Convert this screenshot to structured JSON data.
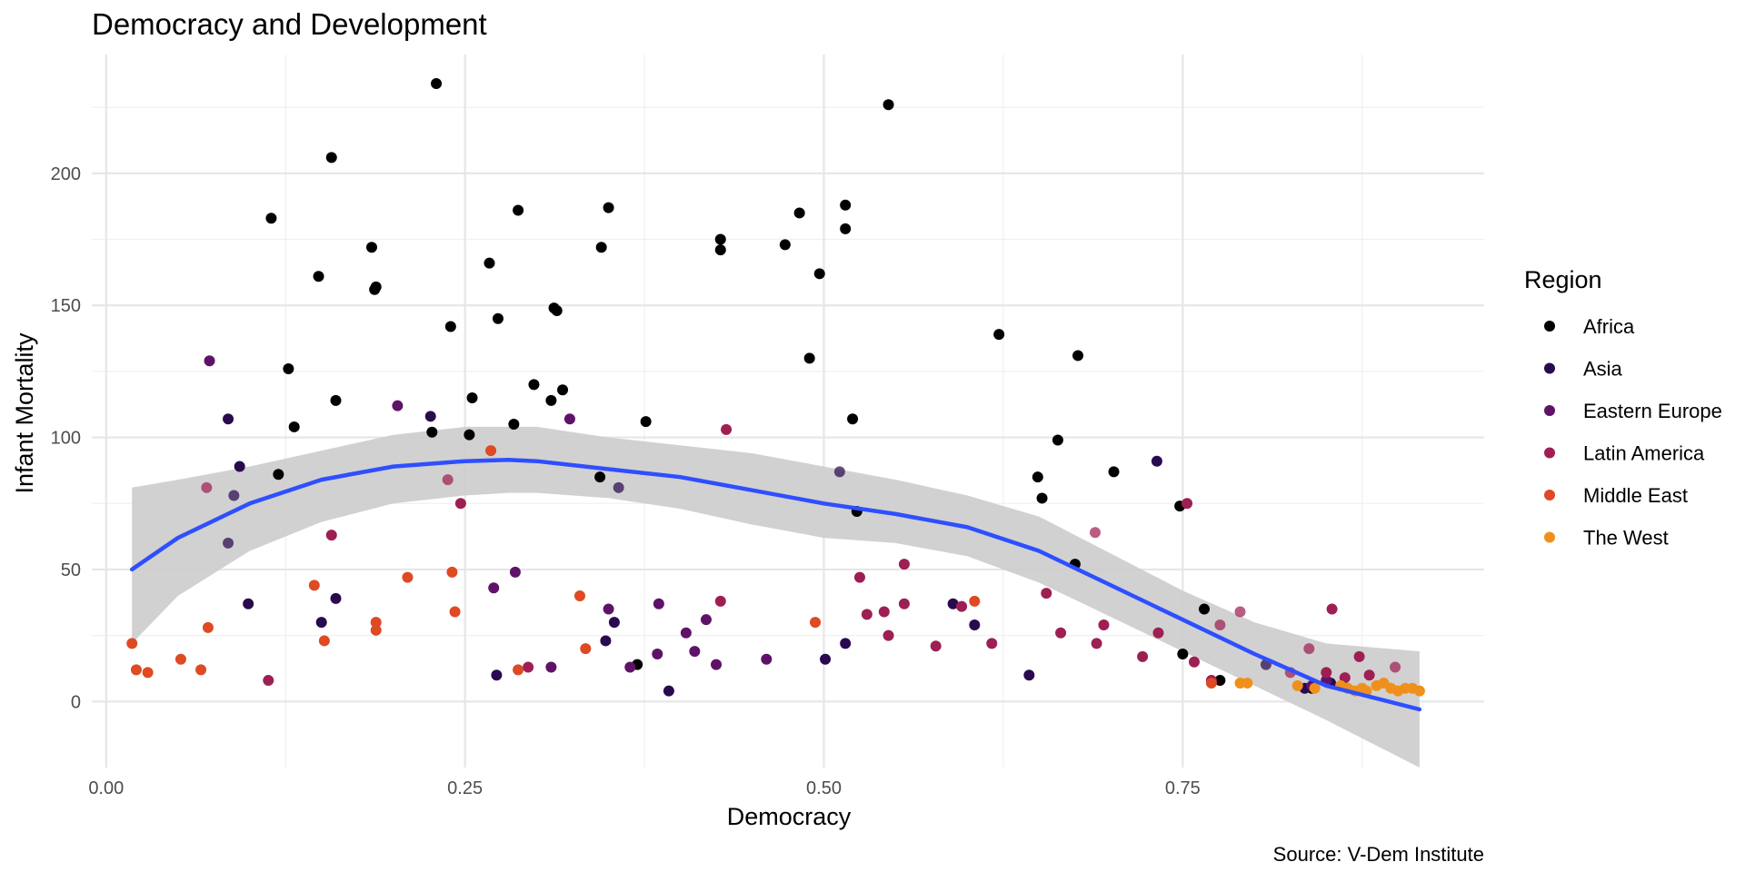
{
  "chart_data": {
    "type": "scatter",
    "title": "Democracy and Development",
    "xlabel": "Democracy",
    "ylabel": "Infant Mortality",
    "caption": "Source: V-Dem Institute",
    "xlim": [
      -0.01,
      0.96
    ],
    "ylim": [
      -25,
      245
    ],
    "x_ticks": [
      0.0,
      0.25,
      0.5,
      0.75
    ],
    "x_tick_labels": [
      "0.00",
      "0.25",
      "0.50",
      "0.75"
    ],
    "y_ticks": [
      0,
      50,
      100,
      150,
      200
    ],
    "y_tick_labels": [
      "0",
      "50",
      "100",
      "150",
      "200"
    ],
    "grid": true,
    "legend": {
      "title": "Region",
      "position": "right"
    },
    "series": [
      {
        "name": "Africa",
        "color": "#000000",
        "points": [
          [
            0.23,
            234
          ],
          [
            0.545,
            226
          ],
          [
            0.157,
            206
          ],
          [
            0.115,
            183
          ],
          [
            0.287,
            186
          ],
          [
            0.35,
            187
          ],
          [
            0.483,
            185
          ],
          [
            0.515,
            188
          ],
          [
            0.185,
            172
          ],
          [
            0.345,
            172
          ],
          [
            0.428,
            175
          ],
          [
            0.428,
            171
          ],
          [
            0.473,
            173
          ],
          [
            0.515,
            179
          ],
          [
            0.267,
            166
          ],
          [
            0.148,
            161
          ],
          [
            0.497,
            162
          ],
          [
            0.187,
            156
          ],
          [
            0.188,
            157
          ],
          [
            0.312,
            149
          ],
          [
            0.314,
            148
          ],
          [
            0.273,
            145
          ],
          [
            0.24,
            142
          ],
          [
            0.622,
            139
          ],
          [
            0.677,
            131
          ],
          [
            0.49,
            130
          ],
          [
            0.127,
            126
          ],
          [
            0.298,
            120
          ],
          [
            0.318,
            118
          ],
          [
            0.31,
            114
          ],
          [
            0.16,
            114
          ],
          [
            0.255,
            115
          ],
          [
            0.131,
            104
          ],
          [
            0.227,
            102
          ],
          [
            0.284,
            105
          ],
          [
            0.376,
            106
          ],
          [
            0.52,
            107
          ],
          [
            0.663,
            99
          ],
          [
            0.253,
            101
          ],
          [
            0.12,
            86
          ],
          [
            0.344,
            85
          ],
          [
            0.649,
            85
          ],
          [
            0.702,
            87
          ],
          [
            0.652,
            77
          ],
          [
            0.748,
            74
          ],
          [
            0.523,
            72
          ],
          [
            0.675,
            52
          ],
          [
            0.765,
            35
          ],
          [
            0.75,
            18
          ],
          [
            0.37,
            14
          ],
          [
            0.776,
            8
          ],
          [
            0.84,
            5
          ]
        ]
      },
      {
        "name": "Asia",
        "color": "#2a0a4e",
        "points": [
          [
            0.085,
            107
          ],
          [
            0.226,
            108
          ],
          [
            0.093,
            89
          ],
          [
            0.732,
            91
          ],
          [
            0.099,
            37
          ],
          [
            0.16,
            39
          ],
          [
            0.15,
            30
          ],
          [
            0.354,
            30
          ],
          [
            0.348,
            23
          ],
          [
            0.501,
            16
          ],
          [
            0.515,
            22
          ],
          [
            0.59,
            37
          ],
          [
            0.605,
            29
          ],
          [
            0.643,
            10
          ],
          [
            0.272,
            10
          ],
          [
            0.392,
            4
          ],
          [
            0.835,
            5
          ],
          [
            0.853,
            7
          ]
        ]
      },
      {
        "name": "Eastern Europe",
        "color": "#5e1368",
        "points": [
          [
            0.072,
            129
          ],
          [
            0.203,
            112
          ],
          [
            0.323,
            107
          ],
          [
            0.285,
            49
          ],
          [
            0.27,
            43
          ],
          [
            0.385,
            37
          ],
          [
            0.404,
            26
          ],
          [
            0.418,
            31
          ],
          [
            0.31,
            13
          ],
          [
            0.365,
            13
          ],
          [
            0.384,
            18
          ],
          [
            0.41,
            19
          ],
          [
            0.425,
            14
          ],
          [
            0.46,
            16
          ],
          [
            0.35,
            35
          ],
          [
            0.84,
            6
          ],
          [
            0.85,
            8
          ]
        ]
      },
      {
        "name": "Latin America",
        "color": "#9e1f53",
        "points": [
          [
            0.432,
            103
          ],
          [
            0.753,
            75
          ],
          [
            0.113,
            8
          ],
          [
            0.157,
            63
          ],
          [
            0.247,
            75
          ],
          [
            0.294,
            13
          ],
          [
            0.428,
            38
          ],
          [
            0.525,
            47
          ],
          [
            0.53,
            33
          ],
          [
            0.542,
            34
          ],
          [
            0.556,
            52
          ],
          [
            0.556,
            37
          ],
          [
            0.545,
            25
          ],
          [
            0.578,
            21
          ],
          [
            0.596,
            36
          ],
          [
            0.617,
            22
          ],
          [
            0.655,
            41
          ],
          [
            0.665,
            26
          ],
          [
            0.69,
            22
          ],
          [
            0.695,
            29
          ],
          [
            0.722,
            17
          ],
          [
            0.733,
            26
          ],
          [
            0.758,
            15
          ],
          [
            0.77,
            8
          ],
          [
            0.854,
            35
          ],
          [
            0.863,
            9
          ],
          [
            0.873,
            17
          ],
          [
            0.88,
            10
          ],
          [
            0.85,
            11
          ]
        ]
      },
      {
        "name": "Middle East",
        "color": "#de4a23",
        "points": [
          [
            0.018,
            22
          ],
          [
            0.021,
            12
          ],
          [
            0.029,
            11
          ],
          [
            0.052,
            16
          ],
          [
            0.066,
            12
          ],
          [
            0.071,
            28
          ],
          [
            0.145,
            44
          ],
          [
            0.152,
            23
          ],
          [
            0.188,
            30
          ],
          [
            0.188,
            27
          ],
          [
            0.21,
            47
          ],
          [
            0.241,
            49
          ],
          [
            0.243,
            34
          ],
          [
            0.268,
            95
          ],
          [
            0.287,
            12
          ],
          [
            0.33,
            40
          ],
          [
            0.334,
            20
          ],
          [
            0.494,
            30
          ],
          [
            0.605,
            38
          ],
          [
            0.77,
            7
          ]
        ]
      },
      {
        "name": "The West",
        "color": "#f0901c",
        "points": [
          [
            0.79,
            7
          ],
          [
            0.795,
            7
          ],
          [
            0.83,
            6
          ],
          [
            0.842,
            5
          ],
          [
            0.86,
            6
          ],
          [
            0.865,
            5
          ],
          [
            0.87,
            4
          ],
          [
            0.875,
            5
          ],
          [
            0.878,
            4
          ],
          [
            0.885,
            6
          ],
          [
            0.89,
            7
          ],
          [
            0.895,
            5
          ],
          [
            0.9,
            4
          ],
          [
            0.905,
            5
          ],
          [
            0.91,
            5
          ],
          [
            0.915,
            4
          ]
        ]
      }
    ],
    "overlay_points": [
      {
        "x": 0.07,
        "y": 81,
        "series": "Latin America"
      },
      {
        "x": 0.089,
        "y": 78,
        "series": "Asia"
      },
      {
        "x": 0.085,
        "y": 60,
        "series": "Asia"
      },
      {
        "x": 0.238,
        "y": 84,
        "series": "Latin America"
      },
      {
        "x": 0.357,
        "y": 81,
        "series": "Asia"
      },
      {
        "x": 0.511,
        "y": 87,
        "series": "Asia"
      },
      {
        "x": 0.689,
        "y": 64,
        "series": "Latin America"
      },
      {
        "x": 0.776,
        "y": 29,
        "series": "Latin America"
      },
      {
        "x": 0.79,
        "y": 34,
        "series": "Latin America"
      },
      {
        "x": 0.808,
        "y": 14,
        "series": "Asia"
      },
      {
        "x": 0.825,
        "y": 11,
        "series": "Latin America"
      },
      {
        "x": 0.838,
        "y": 20,
        "series": "Latin America"
      },
      {
        "x": 0.898,
        "y": 13,
        "series": "Latin America"
      }
    ],
    "smooth": {
      "color": "#2e4fff",
      "ribbon_color": "#cccccc",
      "x": [
        0.018,
        0.05,
        0.1,
        0.15,
        0.2,
        0.25,
        0.28,
        0.3,
        0.35,
        0.4,
        0.45,
        0.5,
        0.55,
        0.6,
        0.65,
        0.7,
        0.75,
        0.8,
        0.85,
        0.915
      ],
      "y": [
        50,
        62,
        75,
        84,
        89,
        91,
        91.5,
        91,
        88,
        85,
        80,
        75,
        71,
        66,
        57,
        44,
        31,
        18,
        6,
        -3
      ],
      "lower": [
        22,
        40,
        57,
        68,
        75,
        78,
        79,
        79,
        77,
        73,
        67,
        62,
        60,
        55,
        45,
        32,
        19,
        6,
        -7,
        -25
      ],
      "upper": [
        81,
        84,
        89,
        95,
        101,
        104,
        104,
        104,
        100,
        97,
        94,
        89,
        84,
        78,
        70,
        56,
        42,
        30,
        22,
        19
      ]
    }
  }
}
